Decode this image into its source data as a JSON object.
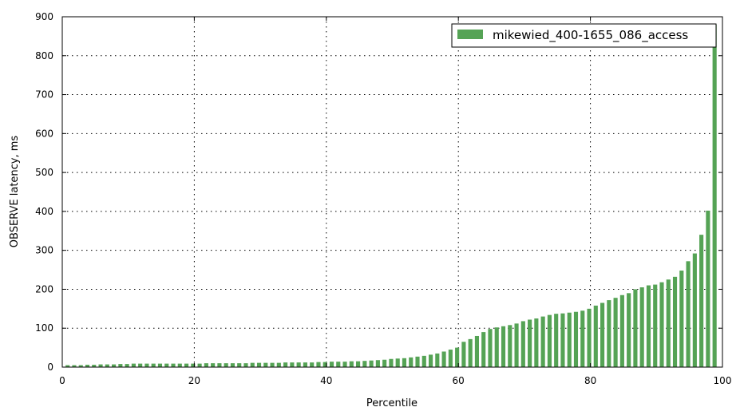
{
  "chart_data": {
    "type": "bar",
    "title": "",
    "xlabel": "Percentile",
    "ylabel": "OBSERVE latency, ms",
    "xlim": [
      0,
      100
    ],
    "ylim": [
      0,
      900
    ],
    "xticks": [
      "0",
      "20",
      "40",
      "60",
      "80",
      "100"
    ],
    "yticks": [
      "0",
      "100",
      "200",
      "300",
      "400",
      "500",
      "600",
      "700",
      "800",
      "900"
    ],
    "grid": true,
    "legend_position": "top-right",
    "bar_color": "#55a355",
    "series": [
      {
        "name": "mikewied_400-1655_086_access",
        "x": [
          1,
          2,
          3,
          4,
          5,
          6,
          7,
          8,
          9,
          10,
          11,
          12,
          13,
          14,
          15,
          16,
          17,
          18,
          19,
          20,
          21,
          22,
          23,
          24,
          25,
          26,
          27,
          28,
          29,
          30,
          31,
          32,
          33,
          34,
          35,
          36,
          37,
          38,
          39,
          40,
          41,
          42,
          43,
          44,
          45,
          46,
          47,
          48,
          49,
          50,
          51,
          52,
          53,
          54,
          55,
          56,
          57,
          58,
          59,
          60,
          61,
          62,
          63,
          64,
          65,
          66,
          67,
          68,
          69,
          70,
          71,
          72,
          73,
          74,
          75,
          76,
          77,
          78,
          79,
          80,
          81,
          82,
          83,
          84,
          85,
          86,
          87,
          88,
          89,
          90,
          91,
          92,
          93,
          94,
          95,
          96,
          97,
          98,
          99
        ],
        "values": [
          5,
          5,
          5,
          6,
          6,
          7,
          7,
          7,
          8,
          8,
          9,
          9,
          9,
          9,
          9,
          9,
          9,
          9,
          9,
          9,
          9,
          10,
          10,
          10,
          10,
          10,
          10,
          10,
          11,
          11,
          11,
          11,
          11,
          12,
          12,
          12,
          12,
          12,
          13,
          13,
          14,
          14,
          14,
          15,
          15,
          16,
          17,
          18,
          19,
          21,
          22,
          23,
          25,
          27,
          29,
          32,
          35,
          40,
          45,
          50,
          65,
          72,
          80,
          90,
          98,
          102,
          105,
          108,
          112,
          118,
          122,
          125,
          130,
          134,
          137,
          138,
          140,
          142,
          145,
          150,
          158,
          165,
          172,
          178,
          185,
          190,
          200,
          205,
          210,
          212,
          218,
          225,
          232,
          248,
          272,
          292,
          340,
          402,
          880
        ]
      }
    ]
  }
}
